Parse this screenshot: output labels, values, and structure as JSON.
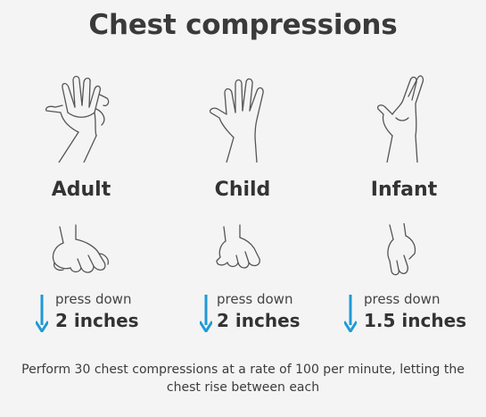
{
  "title": "Chest compressions",
  "accent_color": "#1e9ad6",
  "columns": [
    {
      "age": "Adult",
      "caption": "press down",
      "depth": "2 inches"
    },
    {
      "age": "Child",
      "caption": "press down",
      "depth": "2 inches"
    },
    {
      "age": "Infant",
      "caption": "press down",
      "depth": "1.5 inches"
    }
  ],
  "footer": "Perform 30 chest compressions at a rate of 100 per minute, letting the chest rise between each"
}
